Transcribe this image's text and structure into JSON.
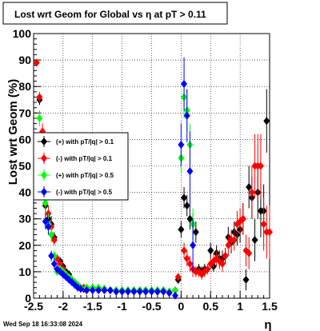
{
  "chart_data": {
    "type": "scatter",
    "title": "Lost wrt Geom for Global vs   η at pT > 0.11",
    "xlabel": "η",
    "ylabel": "Lost wrt Geom (%)",
    "xlim": [
      -2.5,
      1.5
    ],
    "ylim": [
      0,
      100
    ],
    "xticks": [
      -2.5,
      -2,
      -1.5,
      -1,
      -0.5,
      0,
      0.5,
      1,
      1.5
    ],
    "xtick_labels": [
      "-2.5",
      "-2",
      "-1.5",
      "-1",
      "-0.5",
      "0",
      "0.5",
      "1",
      "1.5"
    ],
    "yticks": [
      0,
      10,
      20,
      30,
      40,
      50,
      60,
      70,
      80,
      90,
      100
    ],
    "ytick_labels": [
      "0",
      "10",
      "20",
      "30",
      "40",
      "50",
      "60",
      "70",
      "80",
      "90",
      "100"
    ],
    "grid": true,
    "legend_position": "left-center",
    "timestamp": "Wed Sep 18 16:33:08 2024",
    "series": [
      {
        "name": "(+) with pT/|q| > 0.1",
        "color": "#000000",
        "x": [
          -2.45,
          -2.4,
          -2.35,
          -2.3,
          -2.25,
          -2.2,
          -2.15,
          -2.1,
          -2.05,
          -2.0,
          -1.95,
          -1.9,
          -1.85,
          -1.8,
          -1.75,
          -1.7,
          -1.65,
          -1.6,
          -1.5,
          -1.4,
          -1.3,
          -1.2,
          -1.1,
          -1.0,
          -0.9,
          -0.8,
          -0.7,
          -0.6,
          -0.5,
          -0.4,
          -0.3,
          -0.2,
          -0.1,
          -0.05,
          0.0,
          0.05,
          0.1,
          0.15,
          0.2,
          0.25,
          0.3,
          0.35,
          0.4,
          0.5,
          0.55,
          0.6,
          0.65,
          0.7,
          0.75,
          0.8,
          0.85,
          0.9,
          0.95,
          1.0,
          1.05,
          1.1,
          1.15,
          1.2,
          1.25,
          1.3,
          1.35,
          1.4,
          1.45
        ],
        "y": [
          89,
          75,
          40,
          35,
          30,
          28,
          23,
          15,
          14,
          12,
          10,
          9,
          7,
          6,
          5,
          4,
          3.5,
          3.5,
          4,
          3.5,
          3.5,
          3,
          3,
          3,
          3,
          3,
          3,
          3,
          3,
          3,
          3,
          2.5,
          3,
          7,
          26,
          38,
          35,
          30,
          28,
          25,
          11,
          10,
          11,
          18,
          12,
          17,
          15,
          15,
          16,
          23,
          21,
          25,
          24,
          26,
          30,
          7,
          42,
          38,
          22,
          40,
          33,
          33,
          67
        ],
        "err": [
          0,
          2,
          3,
          3,
          3,
          3,
          2,
          1.5,
          1,
          1,
          1,
          1,
          0.8,
          0.8,
          0.6,
          0.5,
          0.5,
          0.5,
          0.5,
          0.5,
          0.5,
          0.5,
          0.5,
          0.5,
          0.5,
          0.5,
          0.5,
          0.5,
          0.5,
          0.5,
          0.5,
          0.5,
          0.5,
          1.5,
          3,
          4,
          4,
          4,
          4,
          4,
          2,
          2,
          2,
          3,
          2,
          3,
          3,
          3,
          3,
          4,
          4,
          4,
          4,
          5,
          6,
          4,
          8,
          8,
          8,
          10,
          10,
          10,
          12
        ]
      },
      {
        "name": "(-) with pT/|q| > 0.1",
        "color": "#ff0000",
        "x": [
          -2.45,
          -2.4,
          -2.35,
          -2.3,
          -2.25,
          -2.2,
          -2.15,
          -2.1,
          -2.05,
          -2.0,
          -1.95,
          -1.9,
          -1.85,
          -1.8,
          -1.75,
          -1.7,
          -1.65,
          -1.6,
          -1.5,
          -1.4,
          -1.3,
          -1.2,
          -1.1,
          -1.0,
          -0.9,
          -0.8,
          -0.7,
          -0.6,
          -0.5,
          -0.4,
          -0.3,
          -0.2,
          -0.1,
          -0.05,
          0.05,
          0.1,
          0.15,
          0.2,
          0.25,
          0.3,
          0.35,
          0.4,
          0.45,
          0.5,
          0.55,
          0.6,
          0.65,
          0.7,
          0.75,
          0.8,
          0.85,
          0.9,
          0.95,
          1.0,
          1.05,
          1.1,
          1.15,
          1.2,
          1.25,
          1.3,
          1.35,
          1.4,
          1.45,
          1.5
        ],
        "y": [
          89,
          76,
          63,
          42,
          32,
          27,
          22,
          15,
          13,
          11,
          9,
          8,
          7,
          6,
          5,
          4,
          4,
          3.5,
          4,
          3.5,
          3.5,
          3,
          3,
          3,
          3,
          3,
          3,
          3,
          3,
          2.5,
          3,
          2.5,
          3,
          8,
          18,
          15,
          13,
          11,
          10,
          10,
          9,
          10,
          11,
          13,
          14,
          15,
          14,
          13,
          16,
          20,
          22,
          22,
          28,
          29,
          30,
          18,
          17,
          40,
          50,
          50,
          50,
          28,
          25,
          25
        ],
        "err": [
          1,
          2,
          3,
          3,
          3,
          3,
          2,
          1.5,
          1,
          1,
          1,
          1,
          0.8,
          0.8,
          0.6,
          0.5,
          0.5,
          0.5,
          0.5,
          0.5,
          0.5,
          0.5,
          0.5,
          0.5,
          0.5,
          0.5,
          0.5,
          0.5,
          0.5,
          0.5,
          0.5,
          0.5,
          0.5,
          1.5,
          3,
          3,
          3,
          3,
          2,
          2,
          2,
          2,
          2,
          2,
          3,
          3,
          3,
          3,
          3,
          4,
          4,
          4,
          5,
          5,
          6,
          6,
          6,
          10,
          12,
          12,
          12,
          10,
          10,
          10
        ]
      },
      {
        "name": "(+) with pT/|q| > 0.5",
        "color": "#00ff00",
        "x": [
          -2.4,
          -2.35,
          -2.3,
          -2.25,
          -2.2,
          -2.15,
          -2.1,
          -2.05,
          -2.0,
          -1.95,
          -1.9,
          -1.85,
          -1.8,
          -1.75,
          -1.7,
          -1.6,
          -1.5,
          -1.4,
          -1.3,
          -1.2,
          -1.1,
          -1.0,
          -0.9,
          -0.8,
          -0.7,
          -0.6,
          -0.5,
          -0.4,
          -0.3,
          -0.2,
          -0.1,
          0.0,
          0.05,
          0.1,
          0.15,
          0.2
        ],
        "y": [
          68,
          47,
          36,
          28,
          24,
          16,
          10,
          11,
          10,
          9,
          8,
          7,
          6,
          5,
          4,
          4,
          4,
          4,
          3.5,
          3,
          3,
          3,
          3,
          3,
          3,
          3,
          3,
          3,
          3,
          2.5,
          3,
          53,
          76,
          71,
          58,
          28
        ],
        "err": [
          3,
          4,
          4,
          4,
          3,
          2,
          1.5,
          1.5,
          1,
          1,
          1,
          1,
          0.8,
          0.8,
          0.6,
          0.5,
          0.5,
          0.5,
          0.5,
          0.5,
          0.5,
          0.5,
          0.5,
          0.5,
          0.5,
          0.5,
          0.5,
          0.5,
          0.5,
          0.5,
          0.5,
          6,
          8,
          8,
          8,
          6
        ]
      },
      {
        "name": "(-) with pT/|q| > 0.5",
        "color": "#0000ff",
        "x": [
          -2.3,
          -2.25,
          -2.2,
          -2.15,
          -2.1,
          -2.05,
          -2.0,
          -1.95,
          -1.9,
          -1.85,
          -1.8,
          -1.75,
          -1.7,
          -1.6,
          -1.5,
          -1.4,
          -1.3,
          -1.2,
          -1.1,
          -1.0,
          -0.9,
          -0.8,
          -0.7,
          -0.6,
          -0.5,
          -0.4,
          -0.3,
          -0.2,
          -0.1,
          0.0,
          0.05,
          0.1,
          0.15,
          0.2
        ],
        "y": [
          29,
          27,
          16,
          13,
          11,
          10,
          9,
          8,
          7,
          6,
          5,
          4,
          3.5,
          3,
          3,
          3,
          3,
          3,
          2.5,
          2.5,
          2.5,
          2.5,
          2.5,
          2.5,
          2.5,
          2.5,
          2.5,
          2,
          1,
          58,
          81,
          69,
          48,
          20
        ],
        "err": [
          3,
          3,
          2,
          2,
          1.5,
          1,
          1,
          1,
          1,
          0.8,
          0.8,
          0.6,
          0.5,
          0.5,
          0.5,
          0.5,
          0.5,
          0.5,
          0.5,
          0.5,
          0.5,
          0.5,
          0.5,
          0.5,
          0.5,
          0.5,
          0.5,
          0.5,
          0.5,
          8,
          10,
          10,
          15,
          10
        ]
      }
    ]
  }
}
